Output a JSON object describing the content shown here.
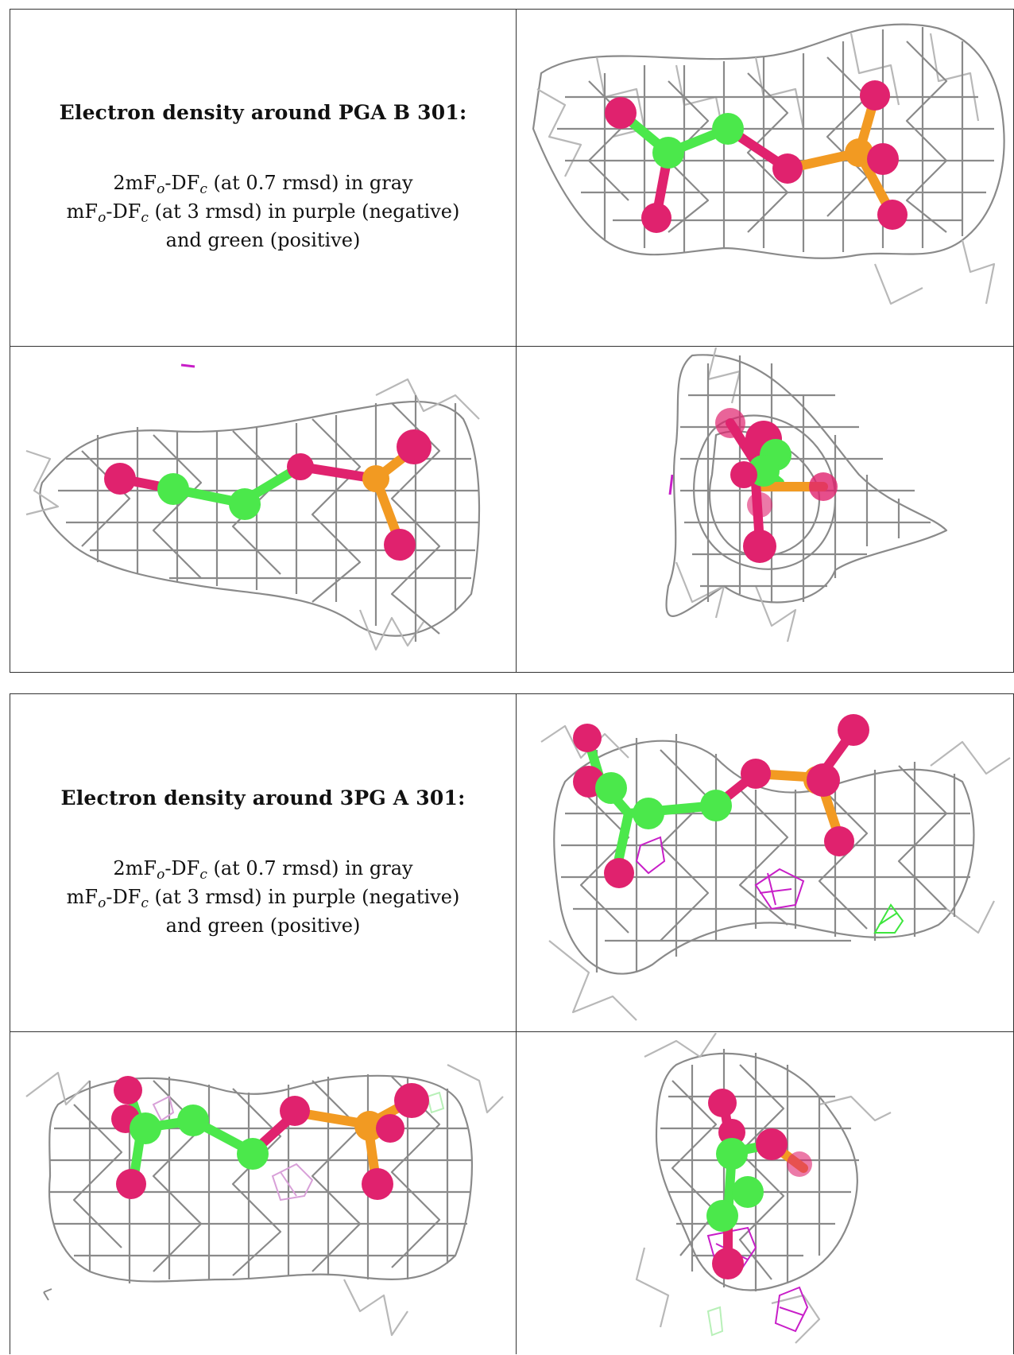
{
  "blocks": [
    {
      "heading": "Electron density around PGA B 301:",
      "legend": {
        "line1": {
          "a": "2mF",
          "a_sub": "o",
          "b": "-DF",
          "b_sub": "c",
          "c": " (at 0.7 rmsd) in gray"
        },
        "line2": {
          "a": "mF",
          "a_sub": "o",
          "b": "-DF",
          "b_sub": "c",
          "c": " (at 3 rmsd) in purple (negative)"
        },
        "line3": "and green (positive)"
      }
    },
    {
      "heading": "Electron density around 3PG A 301:",
      "legend": {
        "line1": {
          "a": "2mF",
          "a_sub": "o",
          "b": "-DF",
          "b_sub": "c",
          "c": " (at 0.7 rmsd) in gray"
        },
        "line2": {
          "a": "mF",
          "a_sub": "o",
          "b": "-DF",
          "b_sub": "c",
          "c": " (at 3 rmsd) in purple (negative)"
        },
        "line3": "and green (positive)"
      }
    }
  ],
  "colors": {
    "mesh": "#8a8a8a",
    "carbon": "#4be84b",
    "oxygen": "#e0226e",
    "phosphorus": "#f29a22",
    "negative_density": "#c81ec8",
    "positive_density": "#3ee63e"
  }
}
